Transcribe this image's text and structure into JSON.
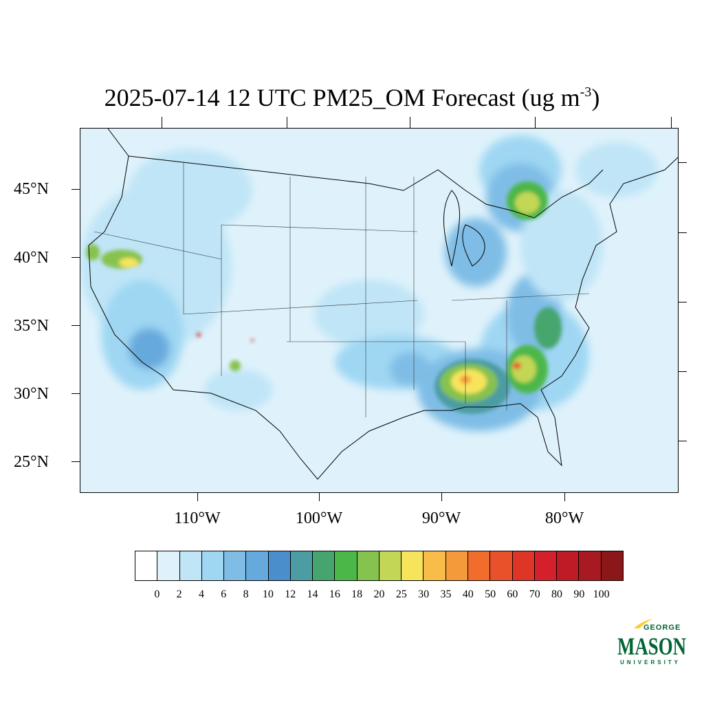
{
  "title": {
    "main": "2025-07-14 12 UTC PM25_OM Forecast (ug m",
    "exponent": "-3",
    "close": ")"
  },
  "map": {
    "region": "CONUS",
    "lat_labels": [
      "45°N",
      "40°N",
      "35°N",
      "30°N",
      "25°N"
    ],
    "lon_labels": [
      "110°W",
      "100°W",
      "90°W",
      "80°W"
    ],
    "background_color": "#dff2fb"
  },
  "colorbar": {
    "labels": [
      "0",
      "2",
      "4",
      "6",
      "8",
      "10",
      "12",
      "14",
      "16",
      "18",
      "20",
      "25",
      "30",
      "35",
      "40",
      "50",
      "60",
      "70",
      "80",
      "90",
      "100"
    ],
    "colors": [
      "#ffffff",
      "#dff2fb",
      "#bfe5f7",
      "#9fd7f3",
      "#7fbde6",
      "#66a9dc",
      "#4a8fcc",
      "#4b9ca3",
      "#46a56e",
      "#4bb748",
      "#86c24e",
      "#c3d655",
      "#f6e45d",
      "#f7bd48",
      "#f59a3b",
      "#f26c2c",
      "#e9512b",
      "#de3527",
      "#d4202a",
      "#bf1b24",
      "#a81a21",
      "#8c1719"
    ]
  },
  "logo": {
    "line1": "GEORGE",
    "line2": "MASON",
    "line3": "UNIVERSITY",
    "green": "#006633",
    "gold": "#ffcc33"
  }
}
